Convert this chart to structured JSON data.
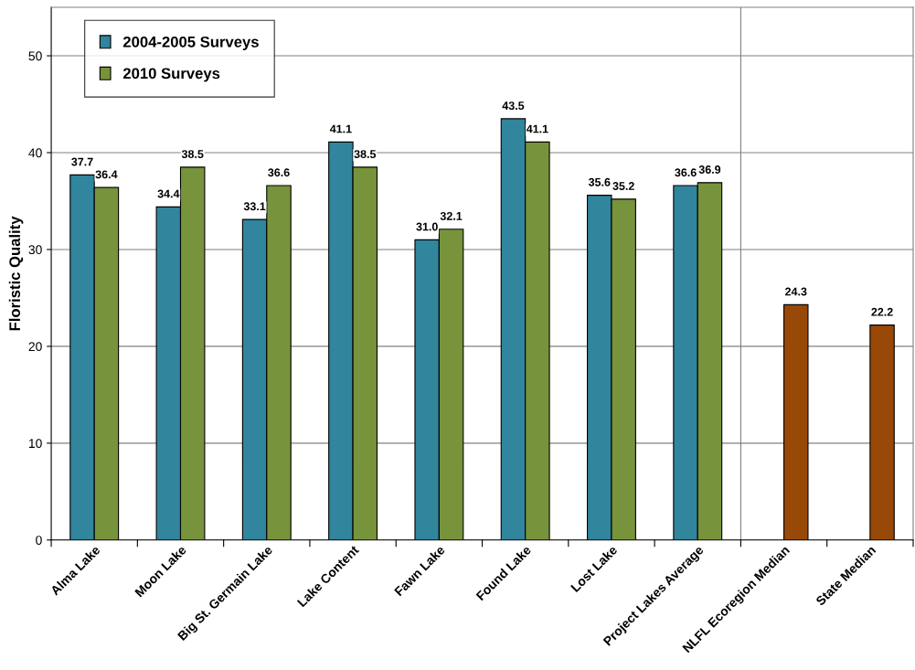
{
  "chart_data": {
    "type": "bar",
    "ylabel": "Floristic Quality",
    "categories": [
      "Alma Lake",
      "Moon Lake",
      "Big St. Germain Lake",
      "Lake Content",
      "Fawn Lake",
      "Found Lake",
      "Lost Lake",
      "Project Lakes Average",
      "NLFL Ecoregion Median",
      "State Median"
    ],
    "series": [
      {
        "name": "2004-2005 Surveys",
        "color": "#31859c",
        "values": [
          37.7,
          34.4,
          33.1,
          41.1,
          31.0,
          43.5,
          35.6,
          36.6,
          null,
          null
        ],
        "value_labels": [
          "37.7",
          "34.4",
          "33.1",
          "41.1",
          "31.0",
          "43.5",
          "35.6",
          "36.6",
          null,
          null
        ]
      },
      {
        "name": "2010 Surveys",
        "color": "#77933c",
        "colors": [
          "#77933c",
          "#77933c",
          "#77933c",
          "#77933c",
          "#77933c",
          "#77933c",
          "#77933c",
          "#77933c",
          "#984807",
          "#984807"
        ],
        "values": [
          36.4,
          38.5,
          36.6,
          38.5,
          32.1,
          41.1,
          35.2,
          36.9,
          24.3,
          22.2
        ],
        "value_labels": [
          "36.4",
          "38.5",
          "36.6",
          "38.5",
          "32.1",
          "41.1",
          "35.2",
          "36.9",
          "24.3",
          "22.2"
        ]
      }
    ],
    "ylim": [
      0,
      55
    ],
    "yticks": [
      0,
      10,
      20,
      30,
      40,
      50
    ],
    "grid": "y",
    "legend": "top left"
  }
}
